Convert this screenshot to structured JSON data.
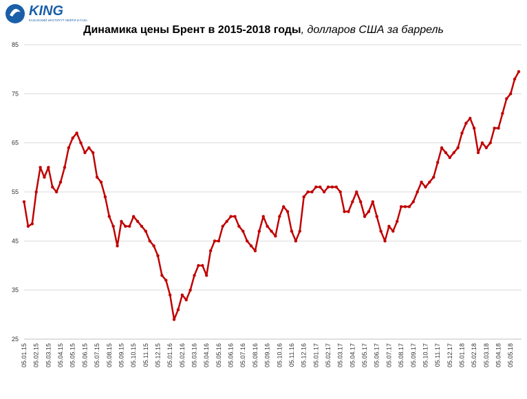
{
  "logo": {
    "name": "KING",
    "tagline": "КАЗАХСКИЙ ИНСТИТУТ НЕФТИ И ГАЗА"
  },
  "chart_data": {
    "type": "line",
    "title": "Динамика цены Брент в 2015-2018 годы",
    "subtitle": ", долларов США за баррель",
    "categories": [
      "05.01.15",
      null,
      null,
      "05.02.15",
      null,
      null,
      "05.03.15",
      null,
      null,
      "05.04.15",
      null,
      null,
      "05.05.15",
      null,
      null,
      "05.06.15",
      null,
      null,
      "05.07.15",
      null,
      null,
      "05.08.15",
      null,
      null,
      "05.09.15",
      null,
      null,
      "05.10.15",
      null,
      null,
      "05.11.15",
      null,
      null,
      "05.12.15",
      null,
      null,
      "05.01.16",
      null,
      null,
      "05.02.16",
      null,
      null,
      "05.03.16",
      null,
      null,
      "05.04.16",
      null,
      null,
      "05.05.16",
      null,
      null,
      "05.06.16",
      null,
      null,
      "05.07.16",
      null,
      null,
      "05.08.16",
      null,
      null,
      "05.09.16",
      null,
      null,
      "05.10.16",
      null,
      null,
      "05.11.16",
      null,
      null,
      "05.12.16",
      null,
      null,
      "05.01.17",
      null,
      null,
      "05.02.17",
      null,
      null,
      "05.03.17",
      null,
      null,
      "05.04.17",
      null,
      null,
      "05.05.17",
      null,
      null,
      "05.06.17",
      null,
      null,
      "05.07.17",
      null,
      null,
      "05.08.17",
      null,
      null,
      "05.09.17",
      null,
      null,
      "05.10.17",
      null,
      null,
      "05.11.17",
      null,
      null,
      "05.12.17",
      null,
      null,
      "05.01.18",
      null,
      null,
      "05.02.18",
      null,
      null,
      "05.03.18",
      null,
      null,
      "05.04.18",
      null,
      null,
      "05.05.18",
      null,
      null
    ],
    "series": [
      {
        "color": "#c00000",
        "values": [
          53,
          48,
          48.5,
          55,
          60,
          58,
          60,
          56,
          55,
          57,
          60,
          64,
          66,
          67,
          65,
          63,
          64,
          63,
          58,
          57,
          54,
          50,
          48,
          44,
          49,
          48,
          48,
          50,
          49,
          48,
          47,
          45,
          44,
          42,
          38,
          37,
          34,
          29,
          31,
          34,
          33,
          35,
          38,
          40,
          40,
          38,
          43,
          45,
          45,
          48,
          49,
          50,
          50,
          48,
          47,
          45,
          44,
          43,
          47,
          50,
          48,
          47,
          46,
          50,
          52,
          51,
          47,
          45,
          47,
          54,
          55,
          55,
          56,
          56,
          55,
          56,
          56,
          56,
          55,
          51,
          51,
          53,
          55,
          53,
          50,
          51,
          53,
          50,
          47,
          45,
          48,
          47,
          49,
          52,
          52,
          52,
          53,
          55,
          57,
          56,
          57,
          58,
          61,
          64,
          63,
          62,
          63,
          64,
          67,
          69,
          70,
          68,
          63,
          65,
          64,
          65,
          68,
          68,
          71,
          74,
          75,
          78,
          79.5
        ]
      }
    ],
    "ylim": [
      25,
      85
    ],
    "yticks": [
      25,
      35,
      45,
      55,
      65,
      75,
      85
    ],
    "grid": true
  }
}
